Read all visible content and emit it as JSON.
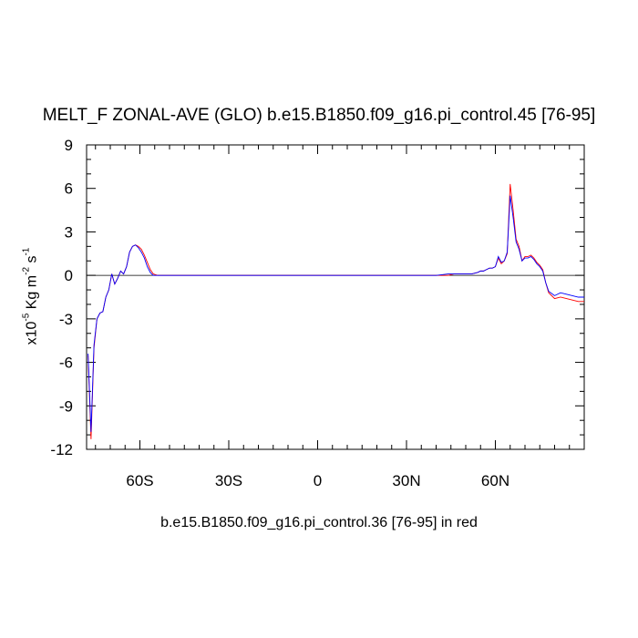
{
  "title": "MELT_F ZONAL-AVE (GLO) b.e15.B1850.f09_g16.pi_control.45 [76-95]",
  "subtitle": "b.e15.B1850.f09_g16.pi_control.36 [76-95] in red",
  "ylabel": {
    "prefix": "x10",
    "exp": "-5",
    "unit1": " Kg m",
    "exp2": "-2",
    "unit2": " s",
    "exp3": "-1"
  },
  "chart_data": {
    "type": "line",
    "title": "MELT_F ZONAL-AVE (GLO) b.e15.B1850.f09_g16.pi_control.45 [76-95]",
    "xlabel": "b.e15.B1850.f09_g16.pi_control.36 [76-95] in red",
    "ylabel": "x10^-5 Kg m^-2 s^-1",
    "xlim": [
      -78,
      90
    ],
    "ylim": [
      -12,
      9
    ],
    "x_ticks": [
      {
        "value": -60,
        "label": "60S"
      },
      {
        "value": -30,
        "label": "30S"
      },
      {
        "value": 0,
        "label": "0"
      },
      {
        "value": 30,
        "label": "30N"
      },
      {
        "value": 60,
        "label": "60N"
      }
    ],
    "y_ticks": [
      {
        "value": 9,
        "label": "9"
      },
      {
        "value": 6,
        "label": "6"
      },
      {
        "value": 3,
        "label": "3"
      },
      {
        "value": 0,
        "label": "0"
      },
      {
        "value": -3,
        "label": "-3"
      },
      {
        "value": -6,
        "label": "-6"
      },
      {
        "value": -9,
        "label": "-9"
      },
      {
        "value": -12,
        "label": "-12"
      }
    ],
    "reference_line": 0,
    "series": [
      {
        "color": "#ff0000",
        "x": [
          -77.5,
          -76.5,
          -75.5,
          -74.5,
          -73.5,
          -72.5,
          -71.5,
          -70.5,
          -69.5,
          -68.5,
          -67.5,
          -66.5,
          -65.5,
          -64.5,
          -63.5,
          -62.5,
          -61.5,
          -60.5,
          -59.5,
          -58.5,
          -57.5,
          -56.5,
          -55.5,
          -54,
          -50,
          -40,
          -30,
          -20,
          -10,
          0,
          10,
          20,
          30,
          40,
          44,
          46,
          48,
          50,
          52,
          54,
          55,
          56,
          57,
          58,
          59,
          60,
          61,
          62,
          63,
          64,
          65,
          66,
          67,
          68,
          69,
          70,
          71,
          72,
          73,
          74,
          75,
          76,
          77,
          78,
          80,
          82,
          84,
          86,
          88,
          90
        ],
        "y": [
          -5.5,
          -11.3,
          -5.0,
          -3.0,
          -2.6,
          -2.5,
          -1.5,
          -1.0,
          0.1,
          -0.6,
          -0.2,
          0.3,
          0.1,
          0.6,
          1.6,
          2.0,
          2.1,
          2.0,
          1.8,
          1.4,
          0.9,
          0.4,
          0.1,
          0.0,
          0.0,
          0.0,
          0.0,
          0.0,
          0.0,
          0.0,
          0.0,
          0.0,
          0.0,
          0.0,
          0.0,
          0.1,
          0.1,
          0.1,
          0.1,
          0.2,
          0.3,
          0.3,
          0.4,
          0.5,
          0.5,
          0.6,
          1.2,
          0.8,
          1.0,
          1.5,
          6.3,
          4.5,
          2.5,
          2.0,
          1.0,
          1.3,
          1.3,
          1.4,
          1.2,
          0.9,
          0.7,
          0.4,
          -0.5,
          -1.2,
          -1.6,
          -1.5,
          -1.6,
          -1.7,
          -1.8,
          -1.8
        ]
      },
      {
        "color": "#0000ff",
        "x": [
          -77.5,
          -76.5,
          -75.5,
          -74.5,
          -73.5,
          -72.5,
          -71.5,
          -70.5,
          -69.5,
          -68.5,
          -67.5,
          -66.5,
          -65.5,
          -64.5,
          -63.5,
          -62.5,
          -61.5,
          -60.5,
          -59.5,
          -58.5,
          -57.5,
          -56.5,
          -55.5,
          -54,
          -50,
          -40,
          -30,
          -20,
          -10,
          0,
          10,
          20,
          30,
          40,
          44,
          46,
          48,
          50,
          52,
          54,
          55,
          56,
          57,
          58,
          59,
          60,
          61,
          62,
          63,
          64,
          65,
          66,
          67,
          68,
          69,
          70,
          71,
          72,
          73,
          74,
          75,
          76,
          77,
          78,
          80,
          82,
          84,
          86,
          88,
          90
        ],
        "y": [
          -5.4,
          -10.8,
          -4.8,
          -3.0,
          -2.6,
          -2.5,
          -1.5,
          -1.0,
          0.1,
          -0.6,
          -0.2,
          0.3,
          0.1,
          0.6,
          1.6,
          2.0,
          2.1,
          1.9,
          1.6,
          1.2,
          0.6,
          0.2,
          0.0,
          0.0,
          0.0,
          0.0,
          0.0,
          0.0,
          0.0,
          0.0,
          0.0,
          0.0,
          0.0,
          0.0,
          0.1,
          0.1,
          0.1,
          0.1,
          0.1,
          0.2,
          0.3,
          0.3,
          0.4,
          0.5,
          0.5,
          0.6,
          1.3,
          0.9,
          1.0,
          1.6,
          5.5,
          4.0,
          2.3,
          1.8,
          1.0,
          1.2,
          1.2,
          1.3,
          1.1,
          0.8,
          0.6,
          0.3,
          -0.5,
          -1.1,
          -1.4,
          -1.2,
          -1.3,
          -1.4,
          -1.5,
          -1.5
        ]
      }
    ]
  }
}
